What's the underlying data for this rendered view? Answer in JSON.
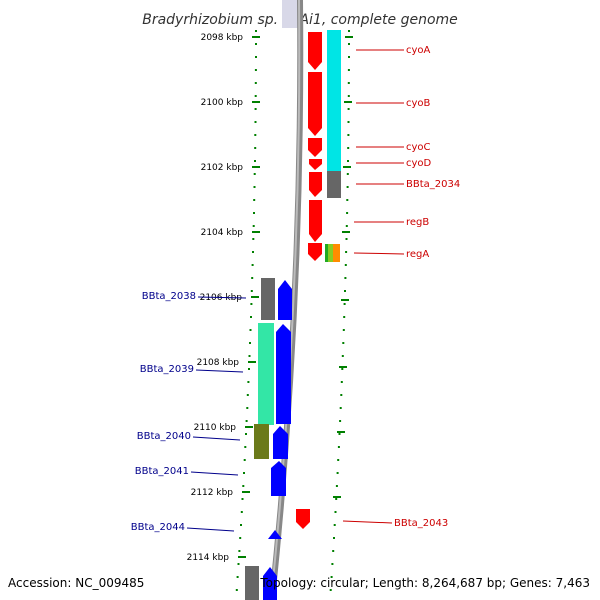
{
  "title": "Bradyrhizobium sp. BTAi1, complete genome",
  "accession_label": "Accession: NC_009485",
  "summary_label": "Topology: circular; Length: 8,264,687 bp; Genes: 7,463",
  "colors": {
    "forward": "#ff0000",
    "reverse": "#0000ff",
    "cyan": "#00e5e5",
    "gray": "#666666",
    "green": "#008000",
    "backbone": "#888888",
    "teal": "#33e6a6",
    "olive": "#6b7a1a",
    "orange": "#ff8c00",
    "label_forward": "#cc0000",
    "label_reverse": "#00008b"
  },
  "ticks": [
    "2098 kbp",
    "2100 kbp",
    "2102 kbp",
    "2104 kbp",
    "2106 kbp",
    "2108 kbp",
    "2110 kbp",
    "2112 kbp",
    "2114 kbp"
  ],
  "forward_labels": [
    "cyoA",
    "cyoB",
    "cyoC",
    "cyoD",
    "BBta_2034",
    "regB",
    "regA",
    "BBta_2043"
  ],
  "reverse_labels": [
    "BBta_2038",
    "BBta_2039",
    "BBta_2040",
    "BBta_2041",
    "BBta_2044"
  ]
}
